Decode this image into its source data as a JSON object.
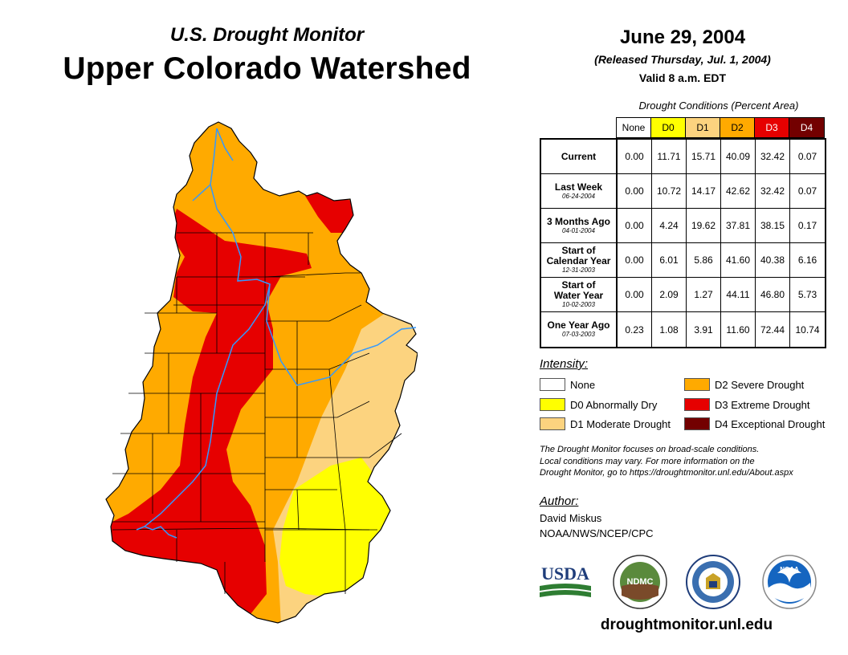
{
  "header": {
    "subtitle": "U.S. Drought Monitor",
    "title": "Upper Colorado Watershed",
    "date": "June 29, 2004",
    "released": "(Released Thursday, Jul. 1, 2004)",
    "valid": "Valid 8 a.m. EDT"
  },
  "table": {
    "caption": "Drought Conditions (Percent Area)",
    "columns": [
      {
        "label": "None",
        "color": "#ffffff",
        "text_color": "#000000"
      },
      {
        "label": "D0",
        "color": "#ffff00",
        "text_color": "#000000"
      },
      {
        "label": "D1",
        "color": "#fcd37f",
        "text_color": "#000000"
      },
      {
        "label": "D2",
        "color": "#ffaa00",
        "text_color": "#000000"
      },
      {
        "label": "D3",
        "color": "#e60000",
        "text_color": "#ffffff"
      },
      {
        "label": "D4",
        "color": "#730000",
        "text_color": "#ffffff"
      }
    ],
    "rows": [
      {
        "label": "Current",
        "date": "",
        "values": [
          "0.00",
          "11.71",
          "15.71",
          "40.09",
          "32.42",
          "0.07"
        ]
      },
      {
        "label": "Last Week",
        "date": "06-24-2004",
        "values": [
          "0.00",
          "10.72",
          "14.17",
          "42.62",
          "32.42",
          "0.07"
        ]
      },
      {
        "label": "3 Months Ago",
        "date": "04-01-2004",
        "values": [
          "0.00",
          "4.24",
          "19.62",
          "37.81",
          "38.15",
          "0.17"
        ]
      },
      {
        "label": "Start of\nCalendar Year",
        "date": "12-31-2003",
        "values": [
          "0.00",
          "6.01",
          "5.86",
          "41.60",
          "40.38",
          "6.16"
        ]
      },
      {
        "label": "Start of\nWater Year",
        "date": "10-02-2003",
        "values": [
          "0.00",
          "2.09",
          "1.27",
          "44.11",
          "46.80",
          "5.73"
        ]
      },
      {
        "label": "One Year Ago",
        "date": "07-03-2003",
        "values": [
          "0.23",
          "1.08",
          "3.91",
          "11.60",
          "72.44",
          "10.74"
        ]
      }
    ]
  },
  "legend": {
    "title": "Intensity:",
    "items": [
      {
        "label": "None",
        "color": "#ffffff"
      },
      {
        "label": "D0 Abnormally Dry",
        "color": "#ffff00"
      },
      {
        "label": "D1 Moderate Drought",
        "color": "#fcd37f"
      },
      {
        "label": "D2 Severe Drought",
        "color": "#ffaa00"
      },
      {
        "label": "D3 Extreme Drought",
        "color": "#e60000"
      },
      {
        "label": "D4 Exceptional Drought",
        "color": "#730000"
      }
    ]
  },
  "note": {
    "line1": "The Drought Monitor focuses on broad-scale conditions.",
    "line2": "Local conditions may vary. For more information on the",
    "line3": "Drought Monitor, go to https://droughtmonitor.unl.edu/About.aspx"
  },
  "author": {
    "title": "Author:",
    "name": "David Miskus",
    "org": "NOAA/NWS/NCEP/CPC"
  },
  "logos": {
    "usda": "USDA",
    "ndmc": "NDMC",
    "noaa": "NOAA"
  },
  "footer": {
    "url": "droughtmonitor.unl.edu"
  },
  "colors": {
    "river": "#3399ff",
    "county_border": "#000000"
  }
}
